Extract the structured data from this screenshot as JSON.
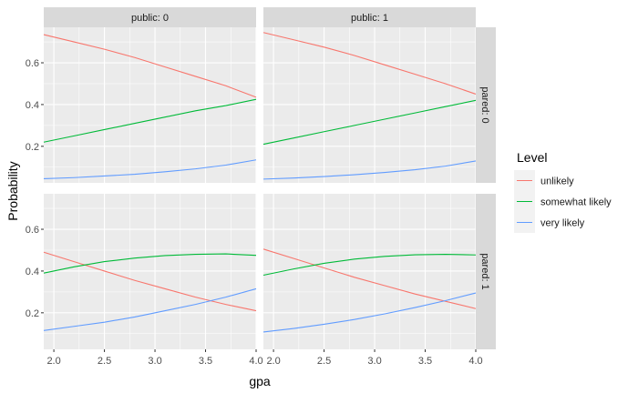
{
  "chart_data": {
    "type": "line",
    "xlabel": "gpa",
    "ylabel": "Probability",
    "xlim": [
      1.9,
      4.0
    ],
    "ylim": [
      0.025,
      0.77
    ],
    "x_ticks": [
      2.0,
      2.5,
      3.0,
      3.5,
      4.0
    ],
    "x_tick_labels": [
      "2.0",
      "2.5",
      "3.0",
      "3.5",
      "4.0"
    ],
    "y_ticks": [
      0.2,
      0.4,
      0.6
    ],
    "y_tick_labels": [
      "0.2",
      "0.4",
      "0.6"
    ],
    "grid": true,
    "legend": {
      "title": "Level",
      "position": "right",
      "entries": [
        {
          "label": "unlikely",
          "color": "#F8766D"
        },
        {
          "label": "somewhat likely",
          "color": "#00BA38"
        },
        {
          "label": "very likely",
          "color": "#619CFF"
        }
      ]
    },
    "facet_columns": [
      "public: 0",
      "public: 1"
    ],
    "facet_rows": [
      "pared: 0",
      "pared: 1"
    ],
    "x": [
      1.9,
      2.2,
      2.5,
      2.8,
      3.1,
      3.4,
      3.7,
      4.0
    ],
    "panels": [
      {
        "column": "public: 0",
        "row": "pared: 0",
        "series": [
          {
            "name": "unlikely",
            "values": [
              0.735,
              0.7,
              0.665,
              0.625,
              0.58,
              0.535,
              0.49,
              0.435
            ]
          },
          {
            "name": "somewhat likely",
            "values": [
              0.22,
              0.25,
              0.28,
              0.31,
              0.34,
              0.37,
              0.395,
              0.425
            ]
          },
          {
            "name": "very likely",
            "values": [
              0.045,
              0.05,
              0.058,
              0.066,
              0.078,
              0.092,
              0.11,
              0.135
            ]
          }
        ]
      },
      {
        "column": "public: 1",
        "row": "pared: 0",
        "series": [
          {
            "name": "unlikely",
            "values": [
              0.745,
              0.71,
              0.675,
              0.635,
              0.59,
              0.545,
              0.5,
              0.45
            ]
          },
          {
            "name": "somewhat likely",
            "values": [
              0.21,
              0.24,
              0.27,
              0.3,
              0.33,
              0.36,
              0.39,
              0.42
            ]
          },
          {
            "name": "very likely",
            "values": [
              0.043,
              0.048,
              0.055,
              0.064,
              0.075,
              0.088,
              0.105,
              0.13
            ]
          }
        ]
      },
      {
        "column": "public: 0",
        "row": "pared: 1",
        "series": [
          {
            "name": "unlikely",
            "values": [
              0.49,
              0.445,
              0.4,
              0.355,
              0.315,
              0.275,
              0.24,
              0.21
            ]
          },
          {
            "name": "somewhat likely",
            "values": [
              0.39,
              0.42,
              0.445,
              0.462,
              0.474,
              0.48,
              0.482,
              0.475
            ]
          },
          {
            "name": "very likely",
            "values": [
              0.115,
              0.135,
              0.155,
              0.18,
              0.21,
              0.24,
              0.275,
              0.315
            ]
          }
        ]
      },
      {
        "column": "public: 1",
        "row": "pared: 1",
        "series": [
          {
            "name": "unlikely",
            "values": [
              0.505,
              0.46,
              0.415,
              0.37,
              0.33,
              0.29,
              0.255,
              0.22
            ]
          },
          {
            "name": "somewhat likely",
            "values": [
              0.38,
              0.41,
              0.437,
              0.457,
              0.47,
              0.478,
              0.48,
              0.477
            ]
          },
          {
            "name": "very likely",
            "values": [
              0.108,
              0.125,
              0.145,
              0.168,
              0.195,
              0.225,
              0.258,
              0.295
            ]
          }
        ]
      }
    ]
  }
}
